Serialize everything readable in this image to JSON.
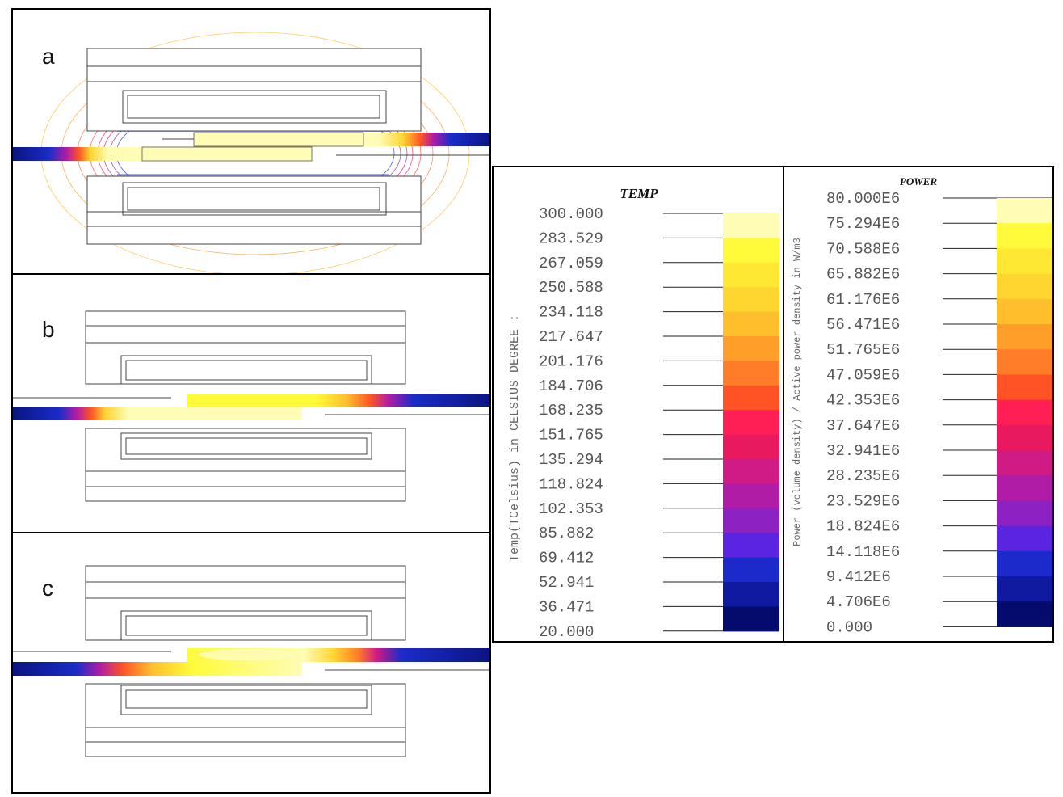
{
  "panels": [
    {
      "label": "a"
    },
    {
      "label": "b"
    },
    {
      "label": "c"
    }
  ],
  "temp_legend": {
    "title": "TEMP",
    "axis_label": "Temp(TCelsius) in CELSIUS_DEGREE :",
    "values": [
      "300.000",
      "283.529",
      "267.059",
      "250.588",
      "234.118",
      "217.647",
      "201.176",
      "184.706",
      "168.235",
      "151.765",
      "135.294",
      "118.824",
      "102.353",
      "85.882",
      "69.412",
      "52.941",
      "36.471",
      "20.000"
    ],
    "colors": [
      "#fffcb6",
      "#fffb3a",
      "#ffe833",
      "#ffd530",
      "#ffbf2d",
      "#ff9f2a",
      "#ff7c28",
      "#ff5326",
      "#ff1f55",
      "#e8195f",
      "#d01a84",
      "#b01ca6",
      "#8c22c1",
      "#5a24e0",
      "#1c2acb",
      "#0f1aa0",
      "#050b6c"
    ]
  },
  "power_legend": {
    "title": "POWER",
    "axis_label": "Power (volume density) / Active power density in W/m3",
    "values": [
      "80.000E6",
      "75.294E6",
      "70.588E6",
      "65.882E6",
      "61.176E6",
      "56.471E6",
      "51.765E6",
      "47.059E6",
      "42.353E6",
      "37.647E6",
      "32.941E6",
      "28.235E6",
      "23.529E6",
      "18.824E6",
      "14.118E6",
      "9.412E6",
      "4.706E6",
      "0.000"
    ],
    "colors": [
      "#fffcb6",
      "#fffb3a",
      "#ffe833",
      "#ffd530",
      "#ffbf2d",
      "#ff9f2a",
      "#ff7c28",
      "#ff5326",
      "#ff1f55",
      "#e8195f",
      "#d01a84",
      "#b01ca6",
      "#8c22c1",
      "#5a24e0",
      "#1c2acb",
      "#0f1aa0",
      "#050b6c"
    ]
  }
}
